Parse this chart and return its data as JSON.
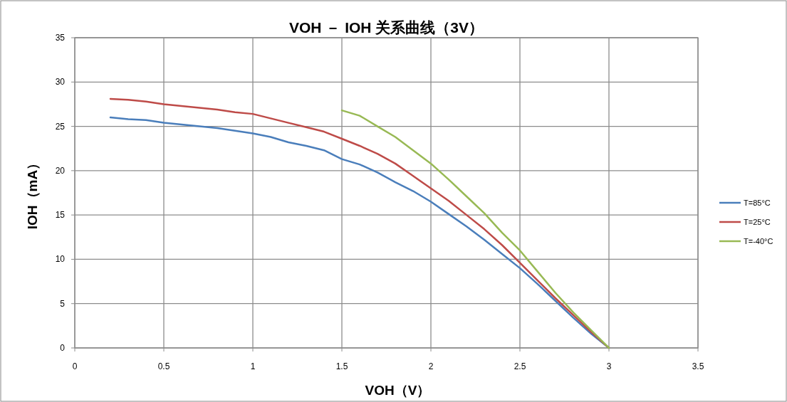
{
  "chart_data": {
    "type": "line",
    "title": "VOH － IOH 关系曲线（3V）",
    "xlabel": "VOH（V）",
    "ylabel": "IOH（mA）",
    "xlim": [
      0,
      3.5
    ],
    "xticks": [
      0,
      0.5,
      1,
      1.5,
      2,
      2.5,
      3,
      3.5
    ],
    "ylim": [
      0,
      35
    ],
    "yticks": [
      0,
      5,
      10,
      15,
      20,
      25,
      30,
      35
    ],
    "grid": true,
    "legend": "right",
    "line_style": "solid",
    "series": [
      {
        "name": "T=85°C",
        "color": "#4a7ebb",
        "x": [
          0.2,
          0.3,
          0.4,
          0.5,
          0.6,
          0.7,
          0.8,
          0.9,
          1.0,
          1.1,
          1.2,
          1.3,
          1.4,
          1.5,
          1.6,
          1.7,
          1.8,
          1.9,
          2.0,
          2.1,
          2.2,
          2.3,
          2.4,
          2.5,
          2.6,
          2.7,
          2.8,
          2.9,
          3.0
        ],
        "values": [
          26,
          25.8,
          25.7,
          25.4,
          25.2,
          25.0,
          24.8,
          24.5,
          24.2,
          23.8,
          23.2,
          22.8,
          22.3,
          21.3,
          20.7,
          19.8,
          18.7,
          17.7,
          16.5,
          15.1,
          13.7,
          12.2,
          10.6,
          9.0,
          7.2,
          5.3,
          3.4,
          1.6,
          0
        ]
      },
      {
        "name": "T=25°C",
        "color": "#be4b48",
        "x": [
          0.2,
          0.3,
          0.4,
          0.5,
          0.6,
          0.7,
          0.8,
          0.9,
          1.0,
          1.1,
          1.2,
          1.3,
          1.4,
          1.5,
          1.6,
          1.7,
          1.8,
          1.9,
          2.0,
          2.1,
          2.2,
          2.3,
          2.4,
          2.5,
          2.6,
          2.7,
          2.8,
          2.9,
          3.0
        ],
        "values": [
          28.1,
          28.0,
          27.8,
          27.5,
          27.3,
          27.1,
          26.9,
          26.6,
          26.4,
          25.9,
          25.4,
          24.9,
          24.4,
          23.6,
          22.8,
          21.9,
          20.8,
          19.4,
          18.0,
          16.6,
          15.0,
          13.4,
          11.6,
          9.6,
          7.6,
          5.6,
          3.7,
          1.8,
          0
        ]
      },
      {
        "name": "T=-40°C",
        "color": "#98b954",
        "x": [
          1.5,
          1.6,
          1.7,
          1.8,
          1.9,
          2.0,
          2.1,
          2.2,
          2.3,
          2.4,
          2.5,
          2.6,
          2.7,
          2.8,
          2.9,
          3.0
        ],
        "values": [
          26.8,
          26.2,
          25.0,
          23.8,
          22.3,
          20.8,
          19.0,
          17.1,
          15.2,
          13.0,
          11.0,
          8.6,
          6.2,
          4.0,
          2.0,
          0
        ]
      }
    ]
  }
}
